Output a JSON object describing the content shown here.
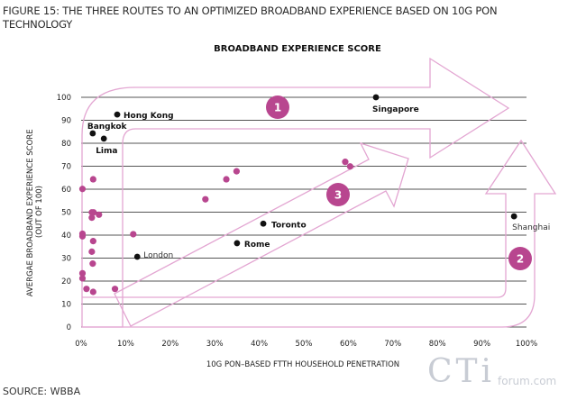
{
  "figure_title": "FIGURE 15: THE THREE ROUTES TO AN OPTIMIZED BROADBAND EXPERIENCE BASED ON 10G PON TECHNOLOGY",
  "source": "SOURCE: WBBA",
  "watermark": {
    "main": "CTi",
    "sub": "forum.com"
  },
  "colors": {
    "highlight": "#b8468f",
    "labelled": "#111111",
    "route_outline": "#e3a6d2",
    "grid": "#555555"
  },
  "chart_data": {
    "type": "scatter",
    "title": "BROADBAND EXPERIENCE SCORE",
    "xlabel": "10G PON–BASED FTTH HOUSEHOLD PENETRATION",
    "ylabel": "AVERGAE BROADBAND EXPERIENCE SCORE\n(OUT OF 100)",
    "ylabel_lines": [
      "AVERGAE BROADBAND EXPERIENCE SCORE",
      "(OUT OF 100)"
    ],
    "xlim": [
      0,
      100
    ],
    "ylim": [
      0,
      100
    ],
    "x_ticks": [
      "0%",
      "10%",
      "20%",
      "30%",
      "40%",
      "50%",
      "60%",
      "70%",
      "80%",
      "90%",
      "100%"
    ],
    "y_ticks": [
      "0",
      "10",
      "20",
      "30",
      "40",
      "50",
      "60",
      "70",
      "80",
      "90",
      "100"
    ],
    "grid": "horizontal",
    "labelled_points": [
      {
        "label": "Hong Kong",
        "x": 8.1,
        "y": 92.5,
        "bold": true
      },
      {
        "label": "Bangkok",
        "x": 2.6,
        "y": 84.3,
        "bold": true
      },
      {
        "label": "Lima",
        "x": 5.1,
        "y": 82,
        "bold": true
      },
      {
        "label": "Singapore",
        "x": 66.2,
        "y": 100,
        "bold": true
      },
      {
        "label": "Toronto",
        "x": 40.9,
        "y": 45,
        "bold": true
      },
      {
        "label": "Rome",
        "x": 35,
        "y": 36.5,
        "bold": true
      },
      {
        "label": "London",
        "x": 12.6,
        "y": 30.6,
        "bold": false
      },
      {
        "label": "Shanghai",
        "x": 97.2,
        "y": 48.2,
        "bold": false
      }
    ],
    "other_points": [
      {
        "x": 0.3,
        "y": 60.1
      },
      {
        "x": 2.7,
        "y": 64.3
      },
      {
        "x": 2.4,
        "y": 49.9
      },
      {
        "x": 2.8,
        "y": 49.9
      },
      {
        "x": 4.0,
        "y": 48.9
      },
      {
        "x": 2.4,
        "y": 47.6
      },
      {
        "x": 0.3,
        "y": 40.6
      },
      {
        "x": 0.3,
        "y": 39.5
      },
      {
        "x": 11.7,
        "y": 40.4
      },
      {
        "x": 2.7,
        "y": 37.4
      },
      {
        "x": 2.4,
        "y": 32.8
      },
      {
        "x": 2.6,
        "y": 27.6
      },
      {
        "x": 0.3,
        "y": 23.4
      },
      {
        "x": 0.3,
        "y": 21.2
      },
      {
        "x": 1.2,
        "y": 16.6
      },
      {
        "x": 2.7,
        "y": 15.3
      },
      {
        "x": 7.6,
        "y": 16.6
      },
      {
        "x": 27.9,
        "y": 55.6
      },
      {
        "x": 32.6,
        "y": 64.3
      },
      {
        "x": 34.9,
        "y": 67.8
      },
      {
        "x": 59.3,
        "y": 71.9
      },
      {
        "x": 60.4,
        "y": 69.9
      }
    ],
    "route_badges": [
      "1",
      "2",
      "3"
    ]
  }
}
